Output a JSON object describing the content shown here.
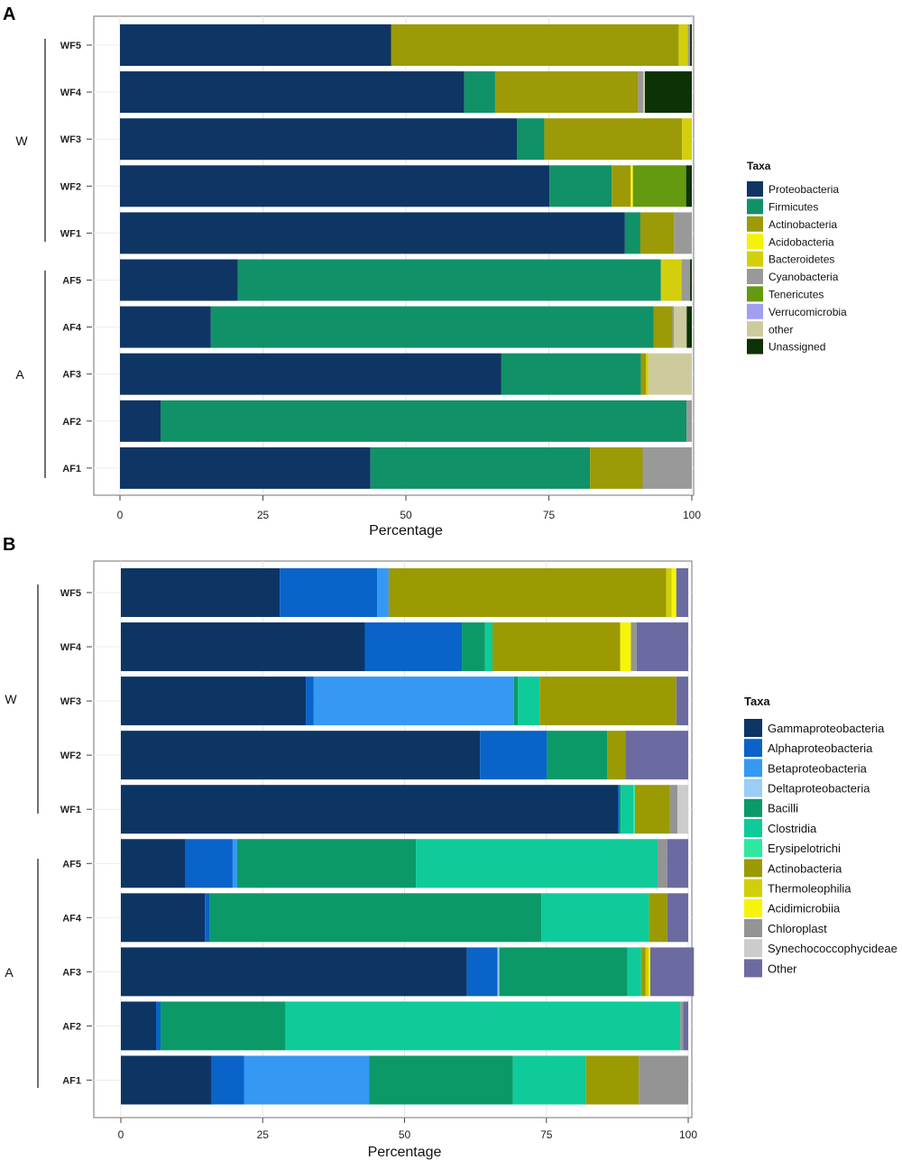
{
  "chart_data": [
    {
      "type": "bar",
      "orientation": "horizontal",
      "stacked": true,
      "panel_label": "A",
      "xlabel": "Percentage",
      "xlim": [
        0,
        100
      ],
      "xticks": [
        0,
        25,
        50,
        75,
        100
      ],
      "grid": true,
      "categories": [
        "WF5",
        "WF4",
        "WF3",
        "WF2",
        "WF1",
        "AF5",
        "AF4",
        "AF3",
        "AF2",
        "AF1"
      ],
      "groups": [
        {
          "label": "W",
          "members": [
            "WF5",
            "WF4",
            "WF3",
            "WF2",
            "WF1"
          ]
        },
        {
          "label": "A",
          "members": [
            "AF5",
            "AF4",
            "AF3",
            "AF2",
            "AF1"
          ]
        }
      ],
      "legend_title": "Taxa",
      "legend_position": "right",
      "series": [
        {
          "name": "Proteobacteria",
          "color": "#0f3564",
          "values": [
            47.4,
            60.2,
            69.4,
            75.1,
            88.3,
            20.6,
            15.9,
            66.7,
            7.1,
            43.8
          ]
        },
        {
          "name": "Firmicutes",
          "color": "#119168",
          "values": [
            0,
            5.4,
            4.8,
            10.9,
            2.7,
            74.0,
            77.4,
            24.4,
            92.0,
            38.4
          ]
        },
        {
          "name": "Actinobacteria",
          "color": "#9c9a07",
          "values": [
            50.3,
            25.0,
            24.1,
            3.3,
            5.9,
            0,
            3.3,
            0.9,
            0,
            9.2
          ]
        },
        {
          "name": "Acidobacteria",
          "color": "#f4f20a",
          "values": [
            0,
            0,
            0,
            0.4,
            0,
            0,
            0,
            0,
            0,
            0
          ]
        },
        {
          "name": "Bacteroidetes",
          "color": "#d4cf0c",
          "values": [
            1.6,
            0,
            1.7,
            0,
            0,
            3.6,
            0,
            0.4,
            0,
            0
          ]
        },
        {
          "name": "Cyanobacteria",
          "color": "#999999",
          "values": [
            0.4,
            0.9,
            0,
            0,
            3.1,
            1.5,
            0.3,
            0,
            0.9,
            8.6
          ]
        },
        {
          "name": "Tenericutes",
          "color": "#649a10",
          "values": [
            0,
            0,
            0,
            9.3,
            0,
            0,
            0,
            0,
            0,
            0
          ]
        },
        {
          "name": "Verrucomicrobia",
          "color": "#a29ef0",
          "values": [
            0,
            0,
            0,
            0,
            0,
            0,
            0,
            0,
            0,
            0
          ]
        },
        {
          "name": "other",
          "color": "#cdcb9d",
          "values": [
            0,
            0.3,
            0,
            0,
            0,
            0,
            2.2,
            7.6,
            0,
            0
          ]
        },
        {
          "name": "Unassigned",
          "color": "#0d3206",
          "values": [
            0.3,
            8.2,
            0,
            1.0,
            0,
            0.3,
            0.9,
            0,
            0,
            0
          ]
        }
      ]
    },
    {
      "type": "bar",
      "orientation": "horizontal",
      "stacked": true,
      "panel_label": "B",
      "xlabel": "Percentage",
      "xlim": [
        0,
        100
      ],
      "xticks": [
        0,
        25,
        50,
        75,
        100
      ],
      "grid": true,
      "categories": [
        "WF5",
        "WF4",
        "WF3",
        "WF2",
        "WF1",
        "AF5",
        "AF4",
        "AF3",
        "AF2",
        "AF1"
      ],
      "groups": [
        {
          "label": "W",
          "members": [
            "WF5",
            "WF4",
            "WF3",
            "WF2",
            "WF1"
          ]
        },
        {
          "label": "A",
          "members": [
            "AF5",
            "AF4",
            "AF3",
            "AF2",
            "AF1"
          ]
        }
      ],
      "legend_title": "Taxa",
      "legend_position": "right",
      "series": [
        {
          "name": "Gammaproteobacteria",
          "color": "#0d3564",
          "values": [
            28.0,
            43.0,
            32.6,
            63.3,
            87.6,
            11.4,
            14.8,
            61.0,
            6.2,
            16.0
          ]
        },
        {
          "name": "Alphaproteobacteria",
          "color": "#0a63c8",
          "values": [
            17.2,
            17.1,
            1.4,
            11.8,
            0.3,
            8.3,
            0.9,
            5.4,
            0.8,
            5.7
          ]
        },
        {
          "name": "Betaproteobacteria",
          "color": "#3598f3",
          "values": [
            2.0,
            0,
            35.3,
            0,
            0,
            0.8,
            0,
            0,
            0,
            22.1
          ]
        },
        {
          "name": "Deltaproteobacteria",
          "color": "#9bcdf5",
          "values": [
            0,
            0,
            0,
            0,
            0,
            0,
            0,
            0.3,
            0,
            0
          ]
        },
        {
          "name": "Bacilli",
          "color": "#0c9968",
          "values": [
            0,
            4.1,
            0.7,
            10.6,
            0.2,
            31.5,
            58.4,
            22.6,
            22.0,
            25.3
          ]
        },
        {
          "name": "Clostridia",
          "color": "#0ecb99",
          "values": [
            0,
            1.3,
            3.8,
            0,
            2.2,
            42.6,
            19.0,
            2.4,
            69.6,
            12.9
          ]
        },
        {
          "name": "Erysipelotrichi",
          "color": "#2ee8a0",
          "values": [
            0,
            0,
            0,
            0,
            0.3,
            0,
            0,
            0,
            0,
            0
          ]
        },
        {
          "name": "Actinobacteria",
          "color": "#9b9a03",
          "values": [
            48.9,
            22.5,
            24.1,
            3.2,
            6.2,
            0,
            3.2,
            0.8,
            0,
            9.3
          ]
        },
        {
          "name": "Thermoleophilia",
          "color": "#d1cf0b",
          "values": [
            1.0,
            0,
            0,
            0,
            0,
            0,
            0,
            0.5,
            0,
            0
          ]
        },
        {
          "name": "Acidimicrobiia",
          "color": "#f6f409",
          "values": [
            0.8,
            1.9,
            0,
            0,
            0,
            0,
            0,
            0.3,
            0,
            0
          ]
        },
        {
          "name": "Chloroplast",
          "color": "#949494",
          "values": [
            0,
            1.0,
            0,
            0,
            1.3,
            1.7,
            0,
            0,
            0.5,
            8.7
          ]
        },
        {
          "name": "Synechococcophycideae",
          "color": "#cccccc",
          "values": [
            0,
            0,
            0,
            0,
            1.9,
            0,
            0,
            0,
            0,
            0
          ]
        },
        {
          "name": "Other",
          "color": "#6b6ba1",
          "values": [
            2.1,
            9.1,
            2.1,
            11.1,
            0,
            3.7,
            3.7,
            7.7,
            0.9,
            0
          ]
        }
      ]
    }
  ]
}
